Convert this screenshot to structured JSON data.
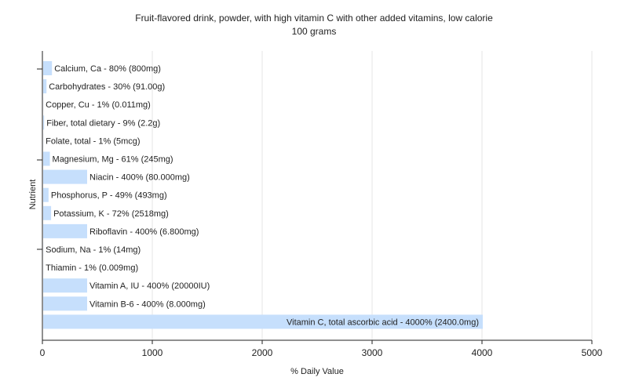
{
  "chart_data": {
    "type": "bar",
    "orientation": "horizontal",
    "title": "Fruit-flavored drink, powder, with high vitamin C with other added vitamins, low calorie",
    "subtitle": "100 grams",
    "xlabel": "% Daily Value",
    "ylabel": "Nutrient",
    "xlim": [
      0,
      5000
    ],
    "xticks": [
      0,
      1000,
      2000,
      3000,
      4000,
      5000
    ],
    "grid": true,
    "bar_color": "#c6dffc",
    "categories": [
      "Calcium, Ca",
      "Carbohydrates",
      "Copper, Cu",
      "Fiber, total dietary",
      "Folate, total",
      "Magnesium, Mg",
      "Niacin",
      "Phosphorus, P",
      "Potassium, K",
      "Riboflavin",
      "Sodium, Na",
      "Thiamin",
      "Vitamin A, IU",
      "Vitamin B-6",
      "Vitamin C, total ascorbic acid"
    ],
    "values": [
      80,
      30,
      1,
      9,
      1,
      61,
      400,
      49,
      72,
      400,
      1,
      1,
      400,
      400,
      4000
    ],
    "labels": [
      "Calcium, Ca - 80% (800mg)",
      "Carbohydrates - 30% (91.00g)",
      "Copper, Cu - 1% (0.011mg)",
      "Fiber, total dietary - 9% (2.2g)",
      "Folate, total - 1% (5mcg)",
      "Magnesium, Mg - 61% (245mg)",
      "Niacin - 400% (80.000mg)",
      "Phosphorus, P - 49% (493mg)",
      "Potassium, K - 72% (2518mg)",
      "Riboflavin - 400% (6.800mg)",
      "Sodium, Na - 1% (14mg)",
      "Thiamin - 1% (0.009mg)",
      "Vitamin A, IU - 400% (20000IU)",
      "Vitamin B-6 - 400% (8.000mg)",
      "Vitamin C, total ascorbic acid - 4000% (2400.0mg)"
    ]
  }
}
